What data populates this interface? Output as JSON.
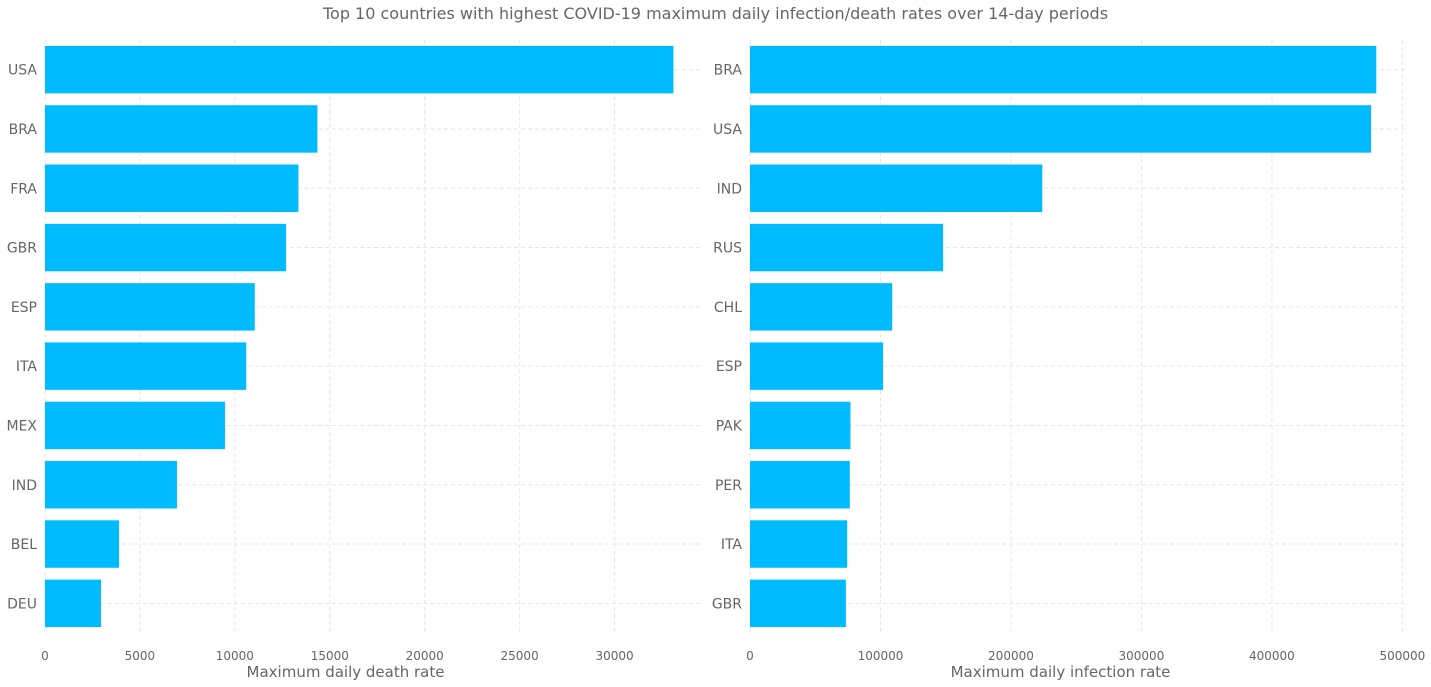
{
  "title": "Top 10 countries with highest COVID-19 maximum daily infection/death rates over 14-day periods",
  "chart_data": [
    {
      "type": "bar",
      "orientation": "horizontal",
      "categories": [
        "USA",
        "BRA",
        "FRA",
        "GBR",
        "ESP",
        "ITA",
        "MEX",
        "IND",
        "BEL",
        "DEU"
      ],
      "values": [
        33100,
        14350,
        13350,
        12700,
        11050,
        10600,
        9480,
        6950,
        3900,
        2950
      ],
      "xlabel": "Maximum daily death rate",
      "ylabel": "",
      "xlim": [
        0,
        34500
      ],
      "xticks": [
        0,
        5000,
        10000,
        15000,
        20000,
        25000,
        30000
      ],
      "grid": true,
      "color": "#00bcff"
    },
    {
      "type": "bar",
      "orientation": "horizontal",
      "categories": [
        "BRA",
        "USA",
        "IND",
        "RUS",
        "CHL",
        "ESP",
        "PAK",
        "PER",
        "ITA",
        "GBR"
      ],
      "values": [
        480000,
        476000,
        224000,
        148000,
        109000,
        102000,
        77000,
        76500,
        74500,
        73500
      ],
      "xlabel": "Maximum daily infection rate",
      "ylabel": "",
      "xlim": [
        0,
        502000
      ],
      "xticks": [
        0,
        100000,
        200000,
        300000,
        400000,
        500000
      ],
      "grid": true,
      "color": "#00bcff"
    }
  ]
}
